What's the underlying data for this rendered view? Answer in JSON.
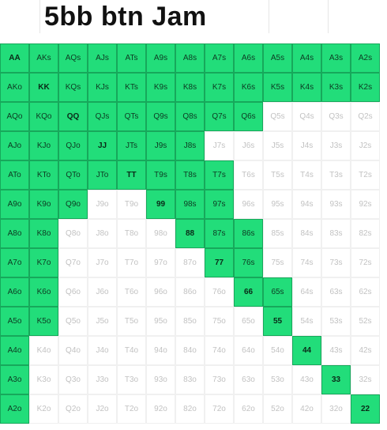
{
  "title": "5bb btn Jam",
  "colors": {
    "jam": "#22dd7a",
    "fold": "#ffffff"
  },
  "ranks": [
    "A",
    "K",
    "Q",
    "J",
    "T",
    "9",
    "8",
    "7",
    "6",
    "5",
    "4",
    "3",
    "2"
  ],
  "rows": [
    [
      {
        "label": "AA",
        "jam": true
      },
      {
        "label": "AKs",
        "jam": true
      },
      {
        "label": "AQs",
        "jam": true
      },
      {
        "label": "AJs",
        "jam": true
      },
      {
        "label": "ATs",
        "jam": true
      },
      {
        "label": "A9s",
        "jam": true
      },
      {
        "label": "A8s",
        "jam": true
      },
      {
        "label": "A7s",
        "jam": true
      },
      {
        "label": "A6s",
        "jam": true
      },
      {
        "label": "A5s",
        "jam": true
      },
      {
        "label": "A4s",
        "jam": true
      },
      {
        "label": "A3s",
        "jam": true
      },
      {
        "label": "A2s",
        "jam": true
      }
    ],
    [
      {
        "label": "AKo",
        "jam": true
      },
      {
        "label": "KK",
        "jam": true
      },
      {
        "label": "KQs",
        "jam": true
      },
      {
        "label": "KJs",
        "jam": true
      },
      {
        "label": "KTs",
        "jam": true
      },
      {
        "label": "K9s",
        "jam": true
      },
      {
        "label": "K8s",
        "jam": true
      },
      {
        "label": "K7s",
        "jam": true
      },
      {
        "label": "K6s",
        "jam": true
      },
      {
        "label": "K5s",
        "jam": true
      },
      {
        "label": "K4s",
        "jam": true
      },
      {
        "label": "K3s",
        "jam": true
      },
      {
        "label": "K2s",
        "jam": true
      }
    ],
    [
      {
        "label": "AQo",
        "jam": true
      },
      {
        "label": "KQo",
        "jam": true
      },
      {
        "label": "QQ",
        "jam": true
      },
      {
        "label": "QJs",
        "jam": true
      },
      {
        "label": "QTs",
        "jam": true
      },
      {
        "label": "Q9s",
        "jam": true
      },
      {
        "label": "Q8s",
        "jam": true
      },
      {
        "label": "Q7s",
        "jam": true
      },
      {
        "label": "Q6s",
        "jam": true
      },
      {
        "label": "Q5s",
        "jam": false
      },
      {
        "label": "Q4s",
        "jam": false
      },
      {
        "label": "Q3s",
        "jam": false
      },
      {
        "label": "Q2s",
        "jam": false
      }
    ],
    [
      {
        "label": "AJo",
        "jam": true
      },
      {
        "label": "KJo",
        "jam": true
      },
      {
        "label": "QJo",
        "jam": true
      },
      {
        "label": "JJ",
        "jam": true
      },
      {
        "label": "JTs",
        "jam": true
      },
      {
        "label": "J9s",
        "jam": true
      },
      {
        "label": "J8s",
        "jam": true
      },
      {
        "label": "J7s",
        "jam": false
      },
      {
        "label": "J6s",
        "jam": false
      },
      {
        "label": "J5s",
        "jam": false
      },
      {
        "label": "J4s",
        "jam": false
      },
      {
        "label": "J3s",
        "jam": false
      },
      {
        "label": "J2s",
        "jam": false
      }
    ],
    [
      {
        "label": "ATo",
        "jam": true
      },
      {
        "label": "KTo",
        "jam": true
      },
      {
        "label": "QTo",
        "jam": true
      },
      {
        "label": "JTo",
        "jam": true
      },
      {
        "label": "TT",
        "jam": true
      },
      {
        "label": "T9s",
        "jam": true
      },
      {
        "label": "T8s",
        "jam": true
      },
      {
        "label": "T7s",
        "jam": true
      },
      {
        "label": "T6s",
        "jam": false
      },
      {
        "label": "T5s",
        "jam": false
      },
      {
        "label": "T4s",
        "jam": false
      },
      {
        "label": "T3s",
        "jam": false
      },
      {
        "label": "T2s",
        "jam": false
      }
    ],
    [
      {
        "label": "A9o",
        "jam": true
      },
      {
        "label": "K9o",
        "jam": true
      },
      {
        "label": "Q9o",
        "jam": true
      },
      {
        "label": "J9o",
        "jam": false
      },
      {
        "label": "T9o",
        "jam": false
      },
      {
        "label": "99",
        "jam": true
      },
      {
        "label": "98s",
        "jam": true
      },
      {
        "label": "97s",
        "jam": true
      },
      {
        "label": "96s",
        "jam": false
      },
      {
        "label": "95s",
        "jam": false
      },
      {
        "label": "94s",
        "jam": false
      },
      {
        "label": "93s",
        "jam": false
      },
      {
        "label": "92s",
        "jam": false
      }
    ],
    [
      {
        "label": "A8o",
        "jam": true
      },
      {
        "label": "K8o",
        "jam": true
      },
      {
        "label": "Q8o",
        "jam": false
      },
      {
        "label": "J8o",
        "jam": false
      },
      {
        "label": "T8o",
        "jam": false
      },
      {
        "label": "98o",
        "jam": false
      },
      {
        "label": "88",
        "jam": true
      },
      {
        "label": "87s",
        "jam": true
      },
      {
        "label": "86s",
        "jam": true
      },
      {
        "label": "85s",
        "jam": false
      },
      {
        "label": "84s",
        "jam": false
      },
      {
        "label": "83s",
        "jam": false
      },
      {
        "label": "82s",
        "jam": false
      }
    ],
    [
      {
        "label": "A7o",
        "jam": true
      },
      {
        "label": "K7o",
        "jam": true
      },
      {
        "label": "Q7o",
        "jam": false
      },
      {
        "label": "J7o",
        "jam": false
      },
      {
        "label": "T7o",
        "jam": false
      },
      {
        "label": "97o",
        "jam": false
      },
      {
        "label": "87o",
        "jam": false
      },
      {
        "label": "77",
        "jam": true
      },
      {
        "label": "76s",
        "jam": true
      },
      {
        "label": "75s",
        "jam": false
      },
      {
        "label": "74s",
        "jam": false
      },
      {
        "label": "73s",
        "jam": false
      },
      {
        "label": "72s",
        "jam": false
      }
    ],
    [
      {
        "label": "A6o",
        "jam": true
      },
      {
        "label": "K6o",
        "jam": true
      },
      {
        "label": "Q6o",
        "jam": false
      },
      {
        "label": "J6o",
        "jam": false
      },
      {
        "label": "T6o",
        "jam": false
      },
      {
        "label": "96o",
        "jam": false
      },
      {
        "label": "86o",
        "jam": false
      },
      {
        "label": "76o",
        "jam": false
      },
      {
        "label": "66",
        "jam": true
      },
      {
        "label": "65s",
        "jam": true
      },
      {
        "label": "64s",
        "jam": false
      },
      {
        "label": "63s",
        "jam": false
      },
      {
        "label": "62s",
        "jam": false
      }
    ],
    [
      {
        "label": "A5o",
        "jam": true
      },
      {
        "label": "K5o",
        "jam": true
      },
      {
        "label": "Q5o",
        "jam": false
      },
      {
        "label": "J5o",
        "jam": false
      },
      {
        "label": "T5o",
        "jam": false
      },
      {
        "label": "95o",
        "jam": false
      },
      {
        "label": "85o",
        "jam": false
      },
      {
        "label": "75o",
        "jam": false
      },
      {
        "label": "65o",
        "jam": false
      },
      {
        "label": "55",
        "jam": true
      },
      {
        "label": "54s",
        "jam": false
      },
      {
        "label": "53s",
        "jam": false
      },
      {
        "label": "52s",
        "jam": false
      }
    ],
    [
      {
        "label": "A4o",
        "jam": true
      },
      {
        "label": "K4o",
        "jam": false
      },
      {
        "label": "Q4o",
        "jam": false
      },
      {
        "label": "J4o",
        "jam": false
      },
      {
        "label": "T4o",
        "jam": false
      },
      {
        "label": "94o",
        "jam": false
      },
      {
        "label": "84o",
        "jam": false
      },
      {
        "label": "74o",
        "jam": false
      },
      {
        "label": "64o",
        "jam": false
      },
      {
        "label": "54o",
        "jam": false
      },
      {
        "label": "44",
        "jam": true
      },
      {
        "label": "43s",
        "jam": false
      },
      {
        "label": "42s",
        "jam": false
      }
    ],
    [
      {
        "label": "A3o",
        "jam": true
      },
      {
        "label": "K3o",
        "jam": false
      },
      {
        "label": "Q3o",
        "jam": false
      },
      {
        "label": "J3o",
        "jam": false
      },
      {
        "label": "T3o",
        "jam": false
      },
      {
        "label": "93o",
        "jam": false
      },
      {
        "label": "83o",
        "jam": false
      },
      {
        "label": "73o",
        "jam": false
      },
      {
        "label": "63o",
        "jam": false
      },
      {
        "label": "53o",
        "jam": false
      },
      {
        "label": "43o",
        "jam": false
      },
      {
        "label": "33",
        "jam": true
      },
      {
        "label": "32s",
        "jam": false
      }
    ],
    [
      {
        "label": "A2o",
        "jam": true
      },
      {
        "label": "K2o",
        "jam": false
      },
      {
        "label": "Q2o",
        "jam": false
      },
      {
        "label": "J2o",
        "jam": false
      },
      {
        "label": "T2o",
        "jam": false
      },
      {
        "label": "92o",
        "jam": false
      },
      {
        "label": "82o",
        "jam": false
      },
      {
        "label": "72o",
        "jam": false
      },
      {
        "label": "62o",
        "jam": false
      },
      {
        "label": "52o",
        "jam": false
      },
      {
        "label": "42o",
        "jam": false
      },
      {
        "label": "32o",
        "jam": false
      },
      {
        "label": "22",
        "jam": true
      }
    ]
  ]
}
